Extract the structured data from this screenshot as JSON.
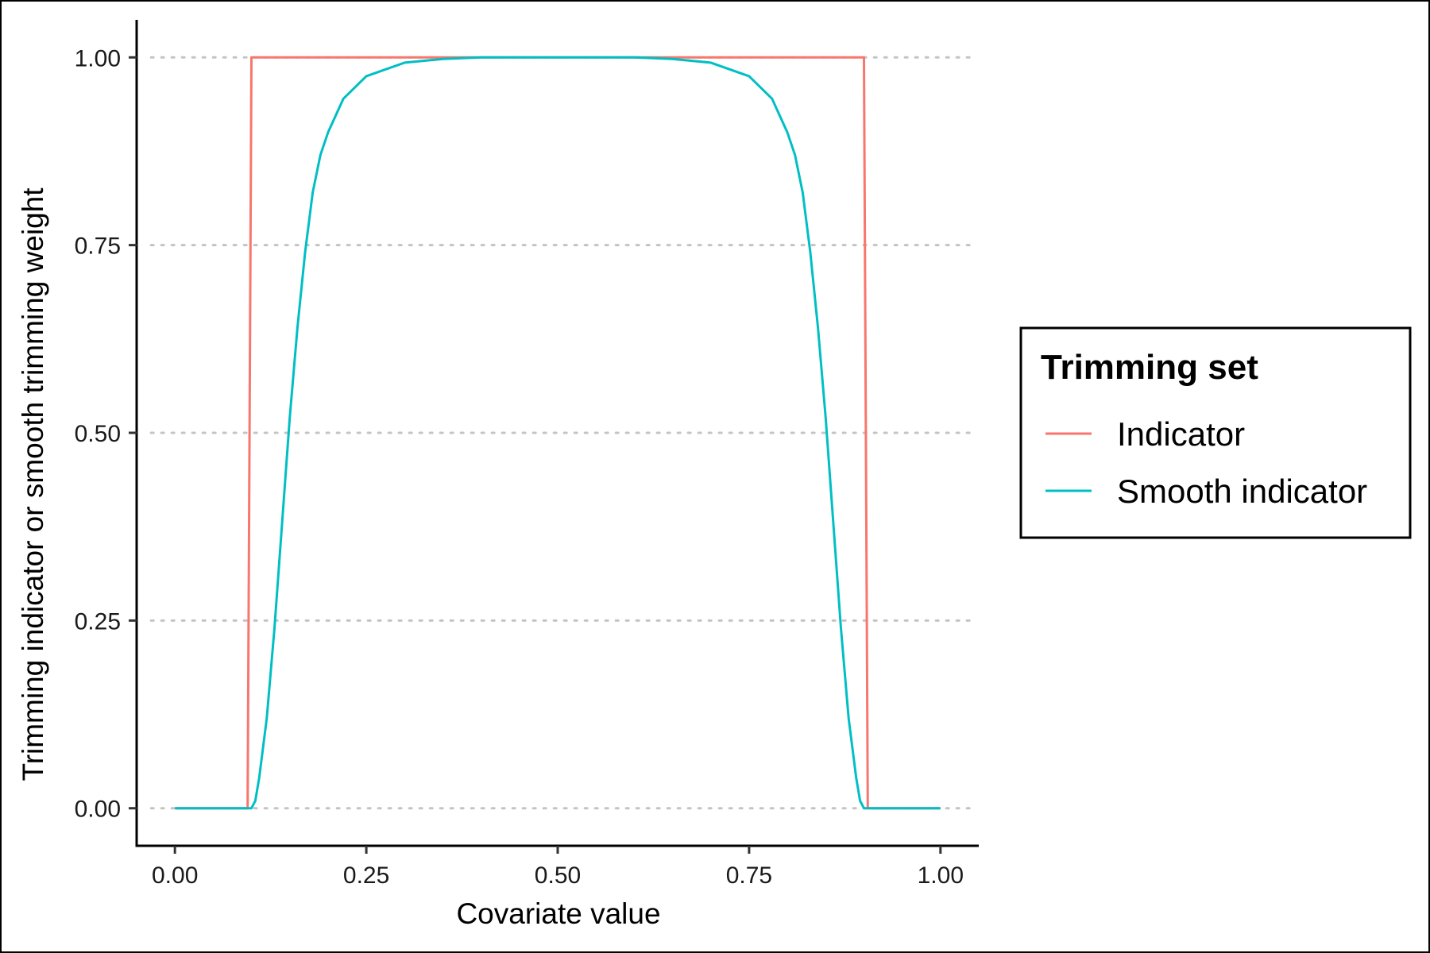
{
  "chart_data": {
    "type": "line",
    "title": "",
    "xlabel": "Covariate value",
    "ylabel": "Trimming indicator or smooth trimming weight",
    "xlim": [
      -0.05,
      1.05
    ],
    "ylim": [
      -0.05,
      1.05
    ],
    "x_ticks": [
      0,
      0.25,
      0.5,
      0.75,
      1
    ],
    "x_tick_labels": [
      "0.00",
      "0.25",
      "0.50",
      "0.75",
      "1.00"
    ],
    "y_ticks": [
      0,
      0.25,
      0.5,
      0.75,
      1
    ],
    "y_tick_labels": [
      "0.00",
      "0.25",
      "0.50",
      "0.75",
      "1.00"
    ],
    "grid": "horizontal dotted",
    "legend": {
      "title": "Trimming set",
      "placement": "right"
    },
    "series": [
      {
        "name": "Indicator",
        "color": "#F8766D",
        "points": [
          [
            0.0,
            0
          ],
          [
            0.095,
            0
          ],
          [
            0.1,
            1
          ],
          [
            0.9,
            1
          ],
          [
            0.905,
            0
          ],
          [
            1.0,
            0
          ]
        ]
      },
      {
        "name": "Smooth indicator",
        "color": "#00BFC4",
        "points": [
          [
            0.0,
            0
          ],
          [
            0.1,
            0
          ],
          [
            0.105,
            0.01
          ],
          [
            0.11,
            0.04
          ],
          [
            0.12,
            0.12
          ],
          [
            0.13,
            0.24
          ],
          [
            0.14,
            0.38
          ],
          [
            0.15,
            0.52
          ],
          [
            0.16,
            0.64
          ],
          [
            0.17,
            0.74
          ],
          [
            0.18,
            0.82
          ],
          [
            0.19,
            0.87
          ],
          [
            0.2,
            0.9
          ],
          [
            0.22,
            0.945
          ],
          [
            0.25,
            0.975
          ],
          [
            0.3,
            0.993
          ],
          [
            0.35,
            0.998
          ],
          [
            0.4,
            1
          ],
          [
            0.6,
            1
          ],
          [
            0.65,
            0.998
          ],
          [
            0.7,
            0.993
          ],
          [
            0.75,
            0.975
          ],
          [
            0.78,
            0.945
          ],
          [
            0.8,
            0.9
          ],
          [
            0.81,
            0.87
          ],
          [
            0.82,
            0.82
          ],
          [
            0.83,
            0.74
          ],
          [
            0.84,
            0.64
          ],
          [
            0.85,
            0.52
          ],
          [
            0.86,
            0.38
          ],
          [
            0.87,
            0.24
          ],
          [
            0.88,
            0.12
          ],
          [
            0.89,
            0.04
          ],
          [
            0.895,
            0.01
          ],
          [
            0.9,
            0
          ],
          [
            1.0,
            0
          ]
        ]
      }
    ]
  }
}
